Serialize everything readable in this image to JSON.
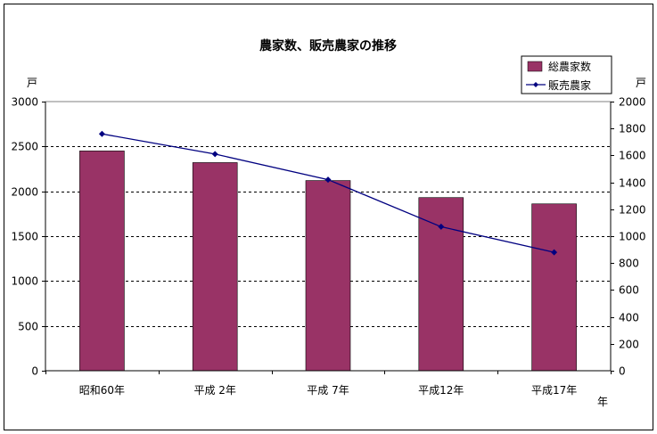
{
  "chart_data": {
    "type": "bar",
    "title": "農家数、販売農家の推移",
    "categories": [
      "昭和60年",
      "平成 2年",
      "平成 7年",
      "平成12年",
      "平成17年"
    ],
    "series": [
      {
        "name": "総農家数",
        "type": "bar",
        "axis": "left",
        "color": "#993366",
        "values": [
          2450,
          2320,
          2120,
          1930,
          1860
        ]
      },
      {
        "name": "販売農家",
        "type": "line",
        "axis": "right",
        "color": "#000080",
        "values": [
          1760,
          1610,
          1420,
          1070,
          880
        ]
      }
    ],
    "y_left": {
      "label": "戸",
      "ylim": [
        0,
        3000
      ],
      "ticks": [
        0,
        500,
        1000,
        1500,
        2000,
        2500,
        3000
      ]
    },
    "y_right": {
      "label": "戸",
      "ylim": [
        0,
        2000
      ],
      "ticks": [
        0,
        200,
        400,
        600,
        800,
        1000,
        1200,
        1400,
        1600,
        1800,
        2000
      ]
    },
    "x_unit": "年",
    "legend_position": "top-right",
    "grid": true
  }
}
